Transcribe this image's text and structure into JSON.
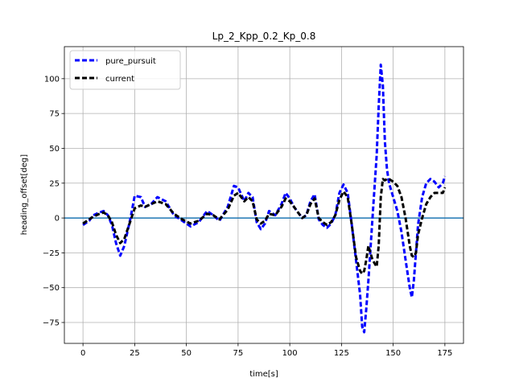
{
  "chart_data": {
    "type": "line",
    "title": "Lp_2_Kpp_0.2_Kp_0.8",
    "xlabel": "time[s]",
    "ylabel": "heading_offset[deg]",
    "xlim": [
      -9,
      184
    ],
    "ylim": [
      -90,
      123
    ],
    "xticks": [
      0,
      25,
      50,
      75,
      100,
      125,
      150,
      175
    ],
    "yticks": [
      -75,
      -50,
      -25,
      0,
      25,
      50,
      75,
      100
    ],
    "grid": true,
    "legend_position": "top-left",
    "zero_line_color": "#1f77b4",
    "series": [
      {
        "name": "pure_pursuit",
        "color": "#0000ff",
        "style": "dashed",
        "x": [
          0,
          3,
          5,
          8,
          10,
          12,
          14,
          16,
          18,
          20,
          23,
          25,
          28,
          30,
          33,
          36,
          40,
          44,
          48,
          52,
          56,
          60,
          63,
          66,
          70,
          73,
          75,
          78,
          80,
          82,
          84,
          86,
          88,
          90,
          93,
          96,
          98,
          100,
          102,
          104,
          106,
          108,
          110,
          112,
          114,
          116,
          118,
          120,
          122,
          124,
          126,
          128,
          130,
          132,
          134,
          135,
          136,
          137,
          138,
          140,
          142,
          143,
          144,
          145,
          146,
          147,
          148,
          150,
          152,
          154,
          156,
          158,
          159,
          160,
          161,
          162,
          164,
          166,
          168,
          170,
          172,
          174,
          175
        ],
        "y": [
          -5,
          -2,
          2,
          4,
          5,
          2,
          -5,
          -18,
          -27,
          -20,
          0,
          16,
          15,
          8,
          10,
          15,
          12,
          2,
          -2,
          -6,
          -3,
          5,
          2,
          -2,
          8,
          23,
          22,
          12,
          18,
          15,
          -3,
          -8,
          -4,
          5,
          2,
          10,
          18,
          14,
          8,
          4,
          0,
          2,
          12,
          17,
          -1,
          -5,
          -7,
          -4,
          2,
          18,
          24,
          18,
          -5,
          -30,
          -55,
          -78,
          -82,
          -65,
          -45,
          0,
          45,
          80,
          110,
          95,
          55,
          35,
          25,
          15,
          5,
          -10,
          -30,
          -50,
          -57,
          -45,
          -25,
          -5,
          15,
          25,
          28,
          26,
          22,
          25,
          30
        ]
      },
      {
        "name": "current",
        "color": "#000000",
        "style": "dashed",
        "x": [
          0,
          3,
          5,
          8,
          10,
          12,
          14,
          16,
          18,
          20,
          23,
          25,
          28,
          30,
          33,
          36,
          40,
          44,
          48,
          52,
          56,
          60,
          63,
          66,
          70,
          73,
          75,
          78,
          80,
          82,
          84,
          86,
          88,
          90,
          93,
          96,
          98,
          100,
          102,
          104,
          106,
          108,
          110,
          112,
          114,
          116,
          118,
          120,
          122,
          124,
          126,
          128,
          130,
          132,
          134,
          135,
          136,
          137,
          138,
          140,
          142,
          143,
          144,
          145,
          146,
          147,
          148,
          150,
          152,
          154,
          156,
          158,
          159,
          160,
          161,
          162,
          164,
          166,
          168,
          170,
          172,
          174,
          175
        ],
        "y": [
          -4,
          -1,
          1,
          3,
          4,
          2,
          -3,
          -12,
          -18,
          -15,
          -2,
          7,
          9,
          8,
          10,
          12,
          10,
          3,
          -1,
          -4,
          -2,
          3,
          2,
          -1,
          6,
          16,
          18,
          12,
          15,
          12,
          -1,
          -4,
          -2,
          3,
          2,
          8,
          14,
          12,
          8,
          4,
          0,
          2,
          10,
          14,
          0,
          -3,
          -5,
          -3,
          2,
          13,
          19,
          15,
          -5,
          -28,
          -38,
          -40,
          -38,
          -30,
          -20,
          -30,
          -35,
          -20,
          15,
          28,
          27,
          28,
          28,
          26,
          23,
          15,
          0,
          -20,
          -27,
          -28,
          -25,
          -12,
          0,
          10,
          15,
          18,
          18,
          18,
          22
        ]
      }
    ]
  }
}
